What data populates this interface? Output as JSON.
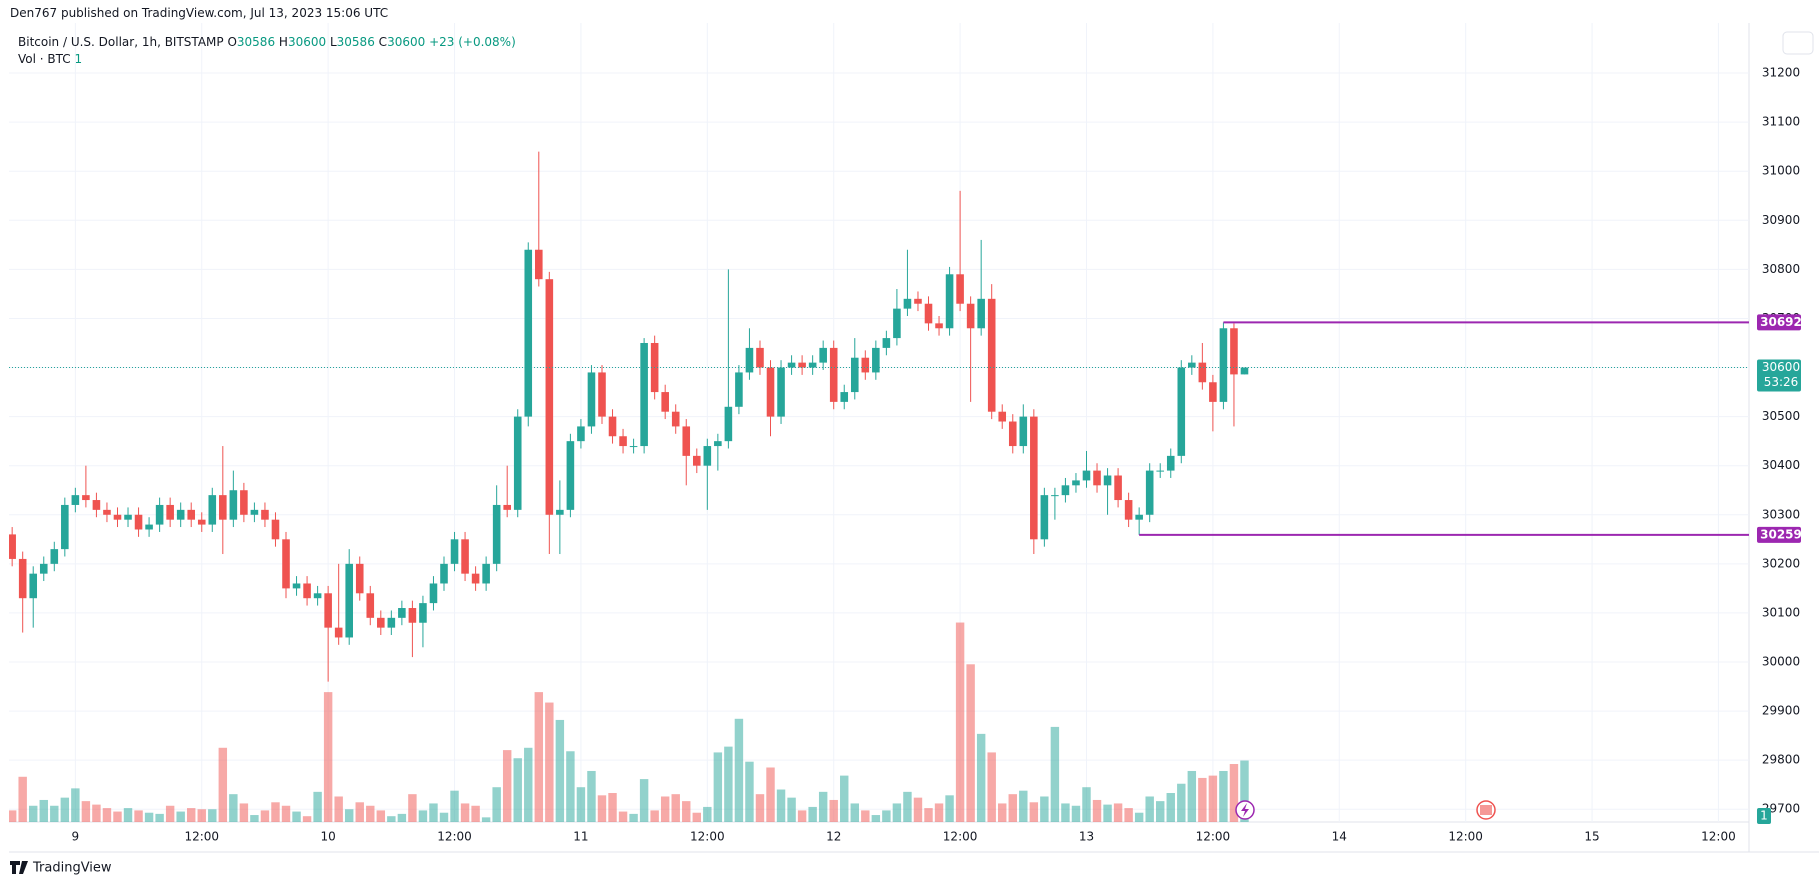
{
  "chart_data": {
    "type": "candlestick",
    "published": "Den767 published on TradingView.com, Jul 13, 2023 15:06 UTC",
    "title": "Bitcoin / U.S. Dollar, 1h, BITSTAMP",
    "ohlc_labels": [
      "O",
      "H",
      "L",
      "C"
    ],
    "change": "+23 (+0.08%)",
    "volume_title": "Vol · BTC",
    "volume_legend": 1,
    "countdown": "53:26",
    "brand": "TradingView",
    "up_color": "#26a69a",
    "down_color": "#ef5350",
    "level_color": "#9c27b0",
    "volume_opacity": 0.5,
    "grid": true,
    "xlim": [
      -0.3,
      164.9
    ],
    "xticks": [
      {
        "value": 6,
        "label": "9"
      },
      {
        "value": 18,
        "label": "12:00"
      },
      {
        "value": 30,
        "label": "10"
      },
      {
        "value": 42,
        "label": "12:00"
      },
      {
        "value": 54,
        "label": "11"
      },
      {
        "value": 66,
        "label": "12:00"
      },
      {
        "value": 78,
        "label": "12"
      },
      {
        "value": 90,
        "label": "12:00"
      },
      {
        "value": 102,
        "label": "13"
      },
      {
        "value": 114,
        "label": "12:00"
      },
      {
        "value": 126,
        "label": "14"
      },
      {
        "value": 138,
        "label": "12:00"
      },
      {
        "value": 150,
        "label": "15"
      },
      {
        "value": 162,
        "label": "12:00"
      }
    ],
    "ylim": [
      29674,
      31302
    ],
    "yticks": [
      29700,
      29800,
      29900,
      30000,
      30100,
      30200,
      30300,
      30400,
      30500,
      30600,
      30700,
      30800,
      30900,
      31000,
      31100,
      31200
    ],
    "volume_ylim": [
      0,
      689
    ],
    "levels": [
      {
        "value": 30692
      },
      {
        "value": 30259
      }
    ],
    "open": [
      30260,
      30210,
      30130,
      30180,
      30200,
      30230,
      30320,
      30340,
      30330,
      30310,
      30300,
      30290,
      30300,
      30270,
      30280,
      30320,
      30290,
      30310,
      30290,
      30280,
      30340,
      30290,
      30350,
      30300,
      30310,
      30290,
      30250,
      30150,
      30160,
      30130,
      30140,
      30070,
      30050,
      30200,
      30140,
      30090,
      30070,
      30090,
      30110,
      30080,
      30120,
      30160,
      30200,
      30250,
      30180,
      30160,
      30200,
      30320,
      30310,
      30500,
      30840,
      30780,
      30300,
      30310,
      30450,
      30480,
      30590,
      30500,
      30460,
      30440,
      30440,
      30650,
      30550,
      30510,
      30480,
      30420,
      30400,
      30440,
      30450,
      30520,
      30590,
      30640,
      30600,
      30500,
      30600,
      30610,
      30600,
      30610,
      30640,
      30530,
      30550,
      30620,
      30590,
      30640,
      30660,
      30720,
      30740,
      30730,
      30690,
      30680,
      30790,
      30730,
      30680,
      30740,
      30510,
      30490,
      30440,
      30500,
      30250,
      30340,
      30340,
      30360,
      30370,
      30390,
      30360,
      30380,
      30330,
      30290,
      30300,
      30390,
      30390,
      30420,
      30600,
      30610,
      30570,
      30530,
      30680,
      30586
    ],
    "high": [
      30275,
      30225,
      30195,
      30215,
      30245,
      30335,
      30355,
      30400,
      30345,
      30325,
      30315,
      30315,
      30315,
      30295,
      30335,
      30335,
      30325,
      30325,
      30305,
      30355,
      30440,
      30390,
      30365,
      30325,
      30325,
      30305,
      30265,
      30175,
      30175,
      30155,
      30155,
      30200,
      30230,
      30215,
      30155,
      30105,
      30105,
      30125,
      30125,
      30135,
      30175,
      30215,
      30265,
      30265,
      30195,
      30215,
      30360,
      30400,
      30515,
      30855,
      31040,
      30795,
      30370,
      30465,
      30495,
      30605,
      30605,
      30515,
      30475,
      30455,
      30660,
      30665,
      30565,
      30525,
      30495,
      30435,
      30455,
      30465,
      30800,
      30605,
      30680,
      30655,
      30615,
      30615,
      30625,
      30625,
      30625,
      30655,
      30655,
      30565,
      30660,
      30635,
      30655,
      30675,
      30760,
      30840,
      30755,
      30745,
      30705,
      30805,
      30960,
      30745,
      30860,
      30770,
      30525,
      30505,
      30525,
      30515,
      30355,
      30355,
      30375,
      30385,
      30430,
      30405,
      30395,
      30395,
      30345,
      30315,
      30405,
      30405,
      30435,
      30615,
      30625,
      30650,
      30585,
      30692,
      30690,
      30600
    ],
    "low": [
      30195,
      30060,
      30070,
      30165,
      30185,
      30215,
      30305,
      30315,
      30295,
      30285,
      30275,
      30275,
      30255,
      30255,
      30265,
      30275,
      30275,
      30275,
      30265,
      30265,
      30220,
      30275,
      30285,
      30285,
      30275,
      30235,
      30130,
      30135,
      30115,
      30115,
      29960,
      30035,
      30035,
      30125,
      30075,
      30055,
      30055,
      30075,
      30010,
      30030,
      30105,
      30145,
      30185,
      30165,
      30145,
      30145,
      30185,
      30295,
      30295,
      30480,
      30765,
      30220,
      30220,
      30295,
      30435,
      30465,
      30485,
      30445,
      30425,
      30425,
      30425,
      30535,
      30495,
      30465,
      30360,
      30385,
      30310,
      30390,
      30435,
      30505,
      30575,
      30585,
      30460,
      30485,
      30585,
      30585,
      30585,
      30595,
      30515,
      30515,
      30535,
      30575,
      30575,
      30625,
      30645,
      30705,
      30715,
      30675,
      30665,
      30665,
      30715,
      30530,
      30665,
      30495,
      30475,
      30425,
      30425,
      30220,
      30235,
      30290,
      30325,
      30345,
      30355,
      30345,
      30300,
      30315,
      30275,
      30259,
      30285,
      30375,
      30375,
      30405,
      30585,
      30555,
      30470,
      30515,
      30480,
      30586
    ],
    "close": [
      30210,
      30130,
      30180,
      30200,
      30230,
      30320,
      30340,
      30330,
      30310,
      30300,
      30290,
      30300,
      30270,
      30280,
      30320,
      30290,
      30310,
      30290,
      30280,
      30340,
      30290,
      30350,
      30300,
      30310,
      30290,
      30250,
      30150,
      30160,
      30130,
      30140,
      30070,
      30050,
      30200,
      30140,
      30090,
      30070,
      30090,
      30110,
      30080,
      30120,
      30160,
      30200,
      30250,
      30180,
      30160,
      30200,
      30320,
      30310,
      30500,
      30840,
      30780,
      30300,
      30310,
      30450,
      30480,
      30590,
      30500,
      30460,
      30440,
      30440,
      30650,
      30550,
      30510,
      30480,
      30420,
      30400,
      30440,
      30450,
      30520,
      30590,
      30640,
      30600,
      30500,
      30600,
      30610,
      30600,
      30610,
      30640,
      30530,
      30550,
      30620,
      30590,
      30640,
      30660,
      30720,
      30740,
      30730,
      30690,
      30680,
      30790,
      30730,
      30680,
      30740,
      30510,
      30490,
      30440,
      30500,
      30250,
      30340,
      30340,
      30360,
      30370,
      30390,
      30360,
      30380,
      30330,
      30290,
      30300,
      30390,
      30390,
      30420,
      30600,
      30610,
      30570,
      30530,
      30680,
      30586,
      30600
    ],
    "volume": [
      10,
      39,
      14,
      19,
      14,
      21,
      29,
      18,
      15,
      12,
      9,
      12,
      10,
      8,
      7,
      14,
      9,
      12,
      11,
      11,
      64,
      24,
      16,
      6,
      10,
      17,
      14,
      9,
      5,
      26,
      112,
      22,
      11,
      17,
      14,
      10,
      5,
      7,
      24,
      10,
      16,
      8,
      27,
      16,
      14,
      4,
      30,
      62,
      55,
      64,
      112,
      103,
      88,
      61,
      30,
      44,
      23,
      25,
      9,
      7,
      37,
      10,
      22,
      24,
      18,
      8,
      13,
      60,
      65,
      89,
      52,
      24,
      47,
      28,
      21,
      10,
      13,
      26,
      19,
      40,
      16,
      10,
      6,
      10,
      16,
      26,
      21,
      12,
      16,
      23,
      172,
      136,
      76,
      60,
      16,
      24,
      27,
      17,
      22,
      82,
      16,
      14,
      30,
      19,
      15,
      16,
      12,
      8,
      22,
      18,
      25,
      33,
      44,
      38,
      40,
      44,
      50,
      53
    ]
  }
}
